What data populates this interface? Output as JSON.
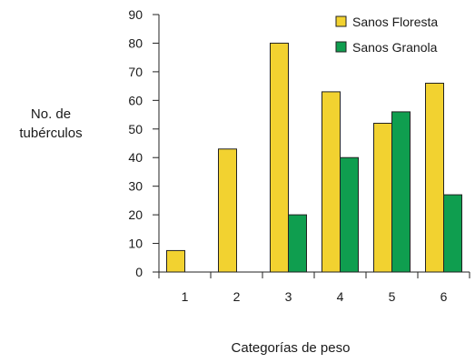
{
  "chart_data": {
    "type": "bar",
    "title": "",
    "xlabel": "Categorías de peso",
    "ylabel_lines": [
      "No. de",
      "tubérculos"
    ],
    "ylim": [
      0,
      90
    ],
    "yticks": [
      0,
      10,
      20,
      30,
      40,
      50,
      60,
      70,
      80,
      90
    ],
    "categories": [
      "1",
      "2",
      "3",
      "4",
      "5",
      "6"
    ],
    "series": [
      {
        "name": "Sanos Floresta",
        "color": "#f2d230",
        "values": [
          7.5,
          43,
          80,
          63,
          52,
          66
        ]
      },
      {
        "name": "Sanos Granola",
        "color": "#0f9e4f",
        "values": [
          null,
          null,
          20,
          40,
          56,
          27
        ]
      }
    ],
    "grid": false,
    "legend_position": "top-right"
  }
}
